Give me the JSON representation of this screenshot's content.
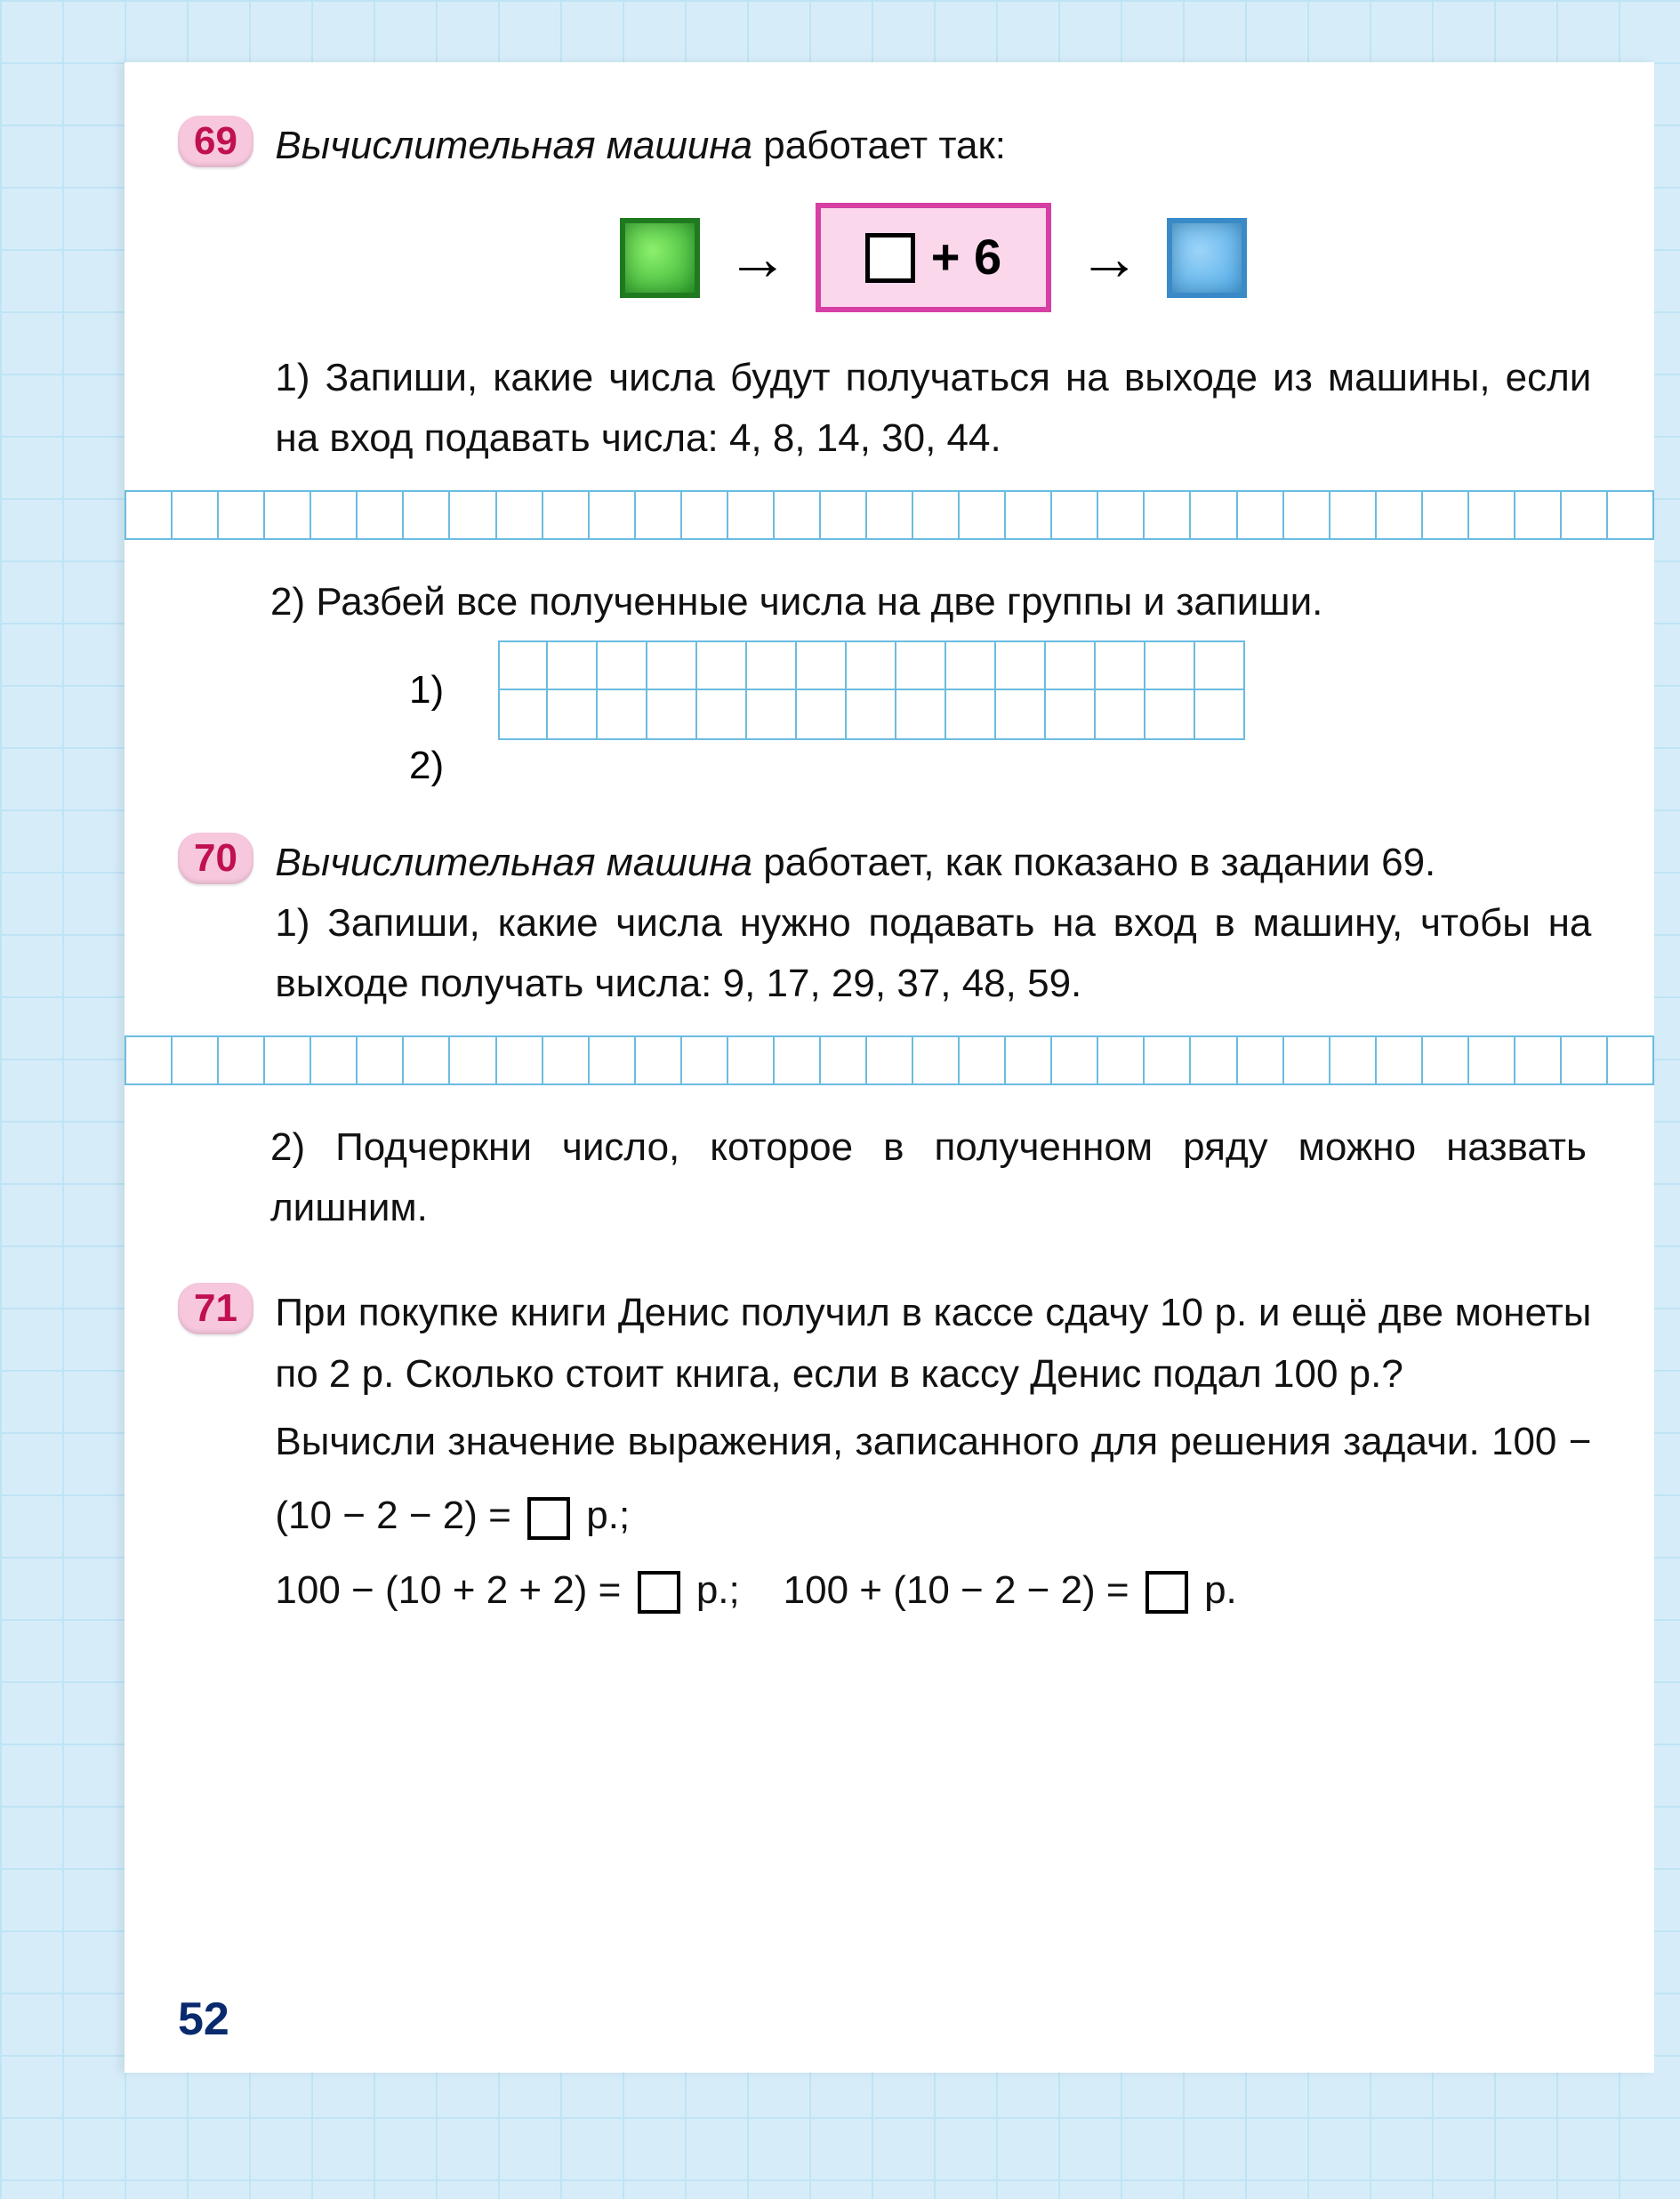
{
  "page": {
    "number": "52",
    "grid_border_color": "#6bbce0",
    "background_grid_color": "#bfe4f5",
    "background_fill": "#d6edf9",
    "badge_bg": "#f7c7de",
    "badge_fg": "#c01050",
    "body_font_size_pt": 44,
    "text_color": "#111111"
  },
  "machine": {
    "input_color": "#2ea82e",
    "input_border": "#1f7a1f",
    "output_color": "#4aa8e8",
    "output_border": "#3a8ac8",
    "op_border": "#d63fa3",
    "op_bg": "#fbd7ec",
    "op_text": "+ 6",
    "arrow_glyph": "→"
  },
  "problems": [
    {
      "num": "69",
      "title_italic": "Вычислительная машина",
      "title_rest": " работает так:",
      "part1_label": "1)",
      "part1_text": "Запиши, какие числа будут получаться на выходе из машины, если на вход подавать числа: 4, 8, 14, 30, 44.",
      "grid_cells_full": 33,
      "part2_label": "2)",
      "part2_text": "Разбей все полученные числа на две группы и запиши.",
      "sublist": [
        "1)",
        "2)"
      ],
      "sub_grid_cols": 15,
      "sub_grid_rows": 2
    },
    {
      "num": "70",
      "title_italic": "Вычислительная машина",
      "title_rest": " работает, как показано в задании 69.",
      "part1_label": "1)",
      "part1_text": "Запиши, какие числа нужно подавать на вход в машину, чтобы на выходе получать числа: 9, 17, 29, 37, 48, 59.",
      "grid_cells_full": 33,
      "part2_label": "2)",
      "part2_text": "Подчеркни число, которое в полученном ряду можно назвать лишним."
    },
    {
      "num": "71",
      "text_main": "При покупке книги Денис получил в кассе сдачу 10 р. и ещё две монеты по 2 р. Сколько стоит книга, если в кассу Денис подал 100 р.?",
      "text_instr": "Вычисли значение выражения, записанного для решения задачи.",
      "expr1_left": "100 − (10 − 2 − 2) = ",
      "expr1_right": " р.;",
      "expr2_left": "100 − (10 + 2 + 2) = ",
      "expr2_right": " р.;",
      "expr3_left": "100 + (10 − 2 − 2) = ",
      "expr3_right": " р."
    }
  ]
}
